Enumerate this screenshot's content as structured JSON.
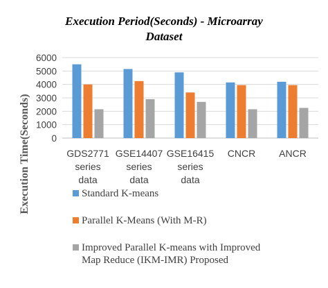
{
  "chart_data": {
    "type": "bar",
    "title_lines": [
      "Execution Period(Seconds) - Microarray",
      "Dataset"
    ],
    "xlabel": "",
    "ylabel": "Execution Time(Seconds)",
    "ylim": [
      0,
      6000
    ],
    "yticks": [
      "0",
      "1000",
      "2000",
      "3000",
      "4000",
      "5000",
      "6000"
    ],
    "categories": [
      [
        "GDS2771",
        "series",
        "data"
      ],
      [
        "GSE14407",
        "series",
        "data"
      ],
      [
        "GSE16415",
        "series",
        "data"
      ],
      [
        "CNCR"
      ],
      [
        "ANCR"
      ]
    ],
    "series": [
      {
        "name": "Standard  K-means",
        "color": "#5b9bd5",
        "values": [
          5500,
          5150,
          4900,
          4150,
          4200
        ]
      },
      {
        "name": "Parallel K-Means (With M-R)",
        "color": "#ed7d31",
        "values": [
          4000,
          4250,
          3400,
          3950,
          3950
        ]
      },
      {
        "name_lines": [
          "Improved Parallel K-means with Improved",
          "Map Reduce (IKM-IMR) Proposed"
        ],
        "color": "#a5a5a5",
        "values": [
          2150,
          2900,
          2700,
          2150,
          2250
        ]
      }
    ],
    "grid": true,
    "legend_position": "bottom"
  }
}
